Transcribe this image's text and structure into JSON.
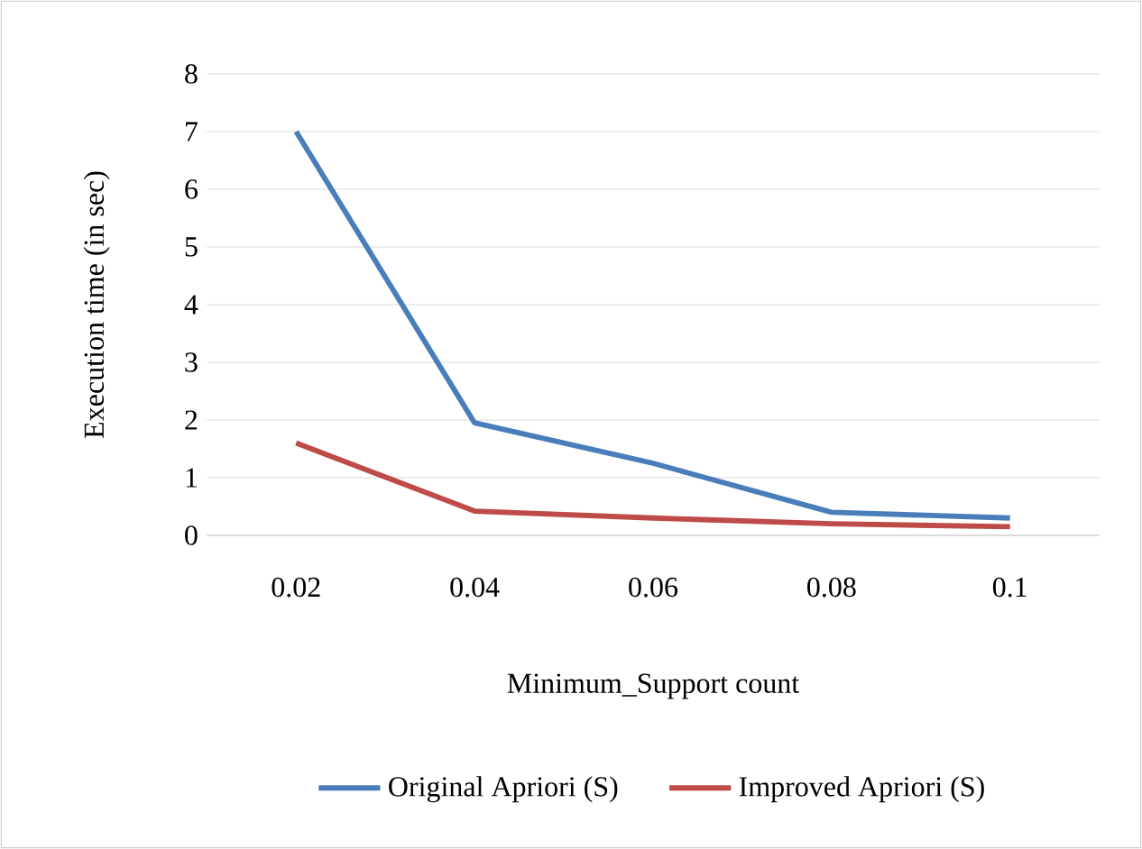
{
  "chart_data": {
    "type": "line",
    "xlabel": "Minimum_Support count",
    "ylabel": "Execution time (in sec)",
    "categories": [
      "0.02",
      "0.04",
      "0.06",
      "0.08",
      "0.1"
    ],
    "ylim": [
      0,
      8
    ],
    "yticks": [
      0,
      1,
      2,
      3,
      4,
      5,
      6,
      7,
      8
    ],
    "grid": "y",
    "legend": "bottom",
    "marker": "none",
    "line_style": "solid",
    "series": [
      {
        "name": "Original Apriori (S)",
        "color": "#4a7ebb",
        "values": [
          7.0,
          1.95,
          1.25,
          0.4,
          0.3
        ]
      },
      {
        "name": "Improved Apriori (S)",
        "color": "#be4b48",
        "values": [
          1.6,
          0.42,
          0.3,
          0.2,
          0.15
        ]
      }
    ]
  }
}
